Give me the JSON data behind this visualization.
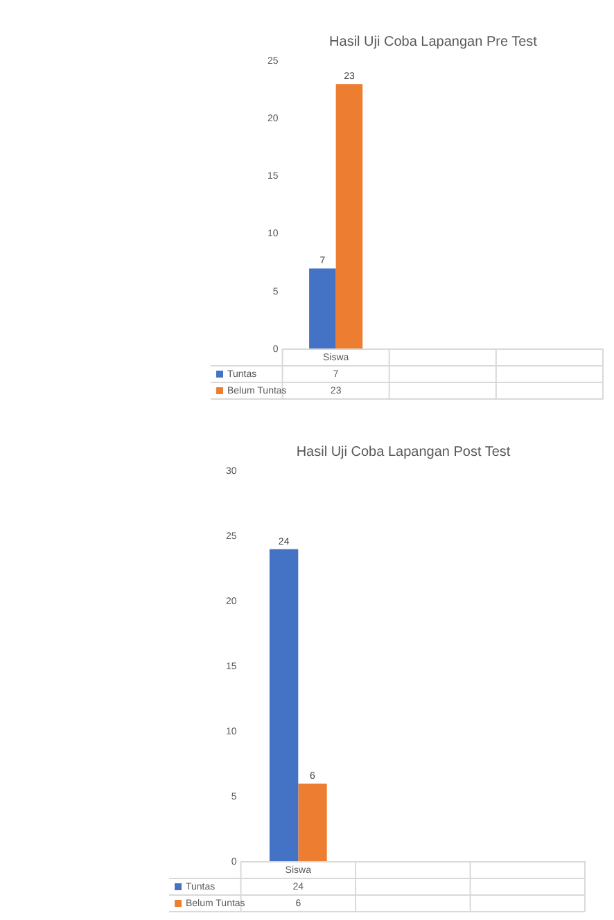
{
  "chart_data": [
    {
      "type": "bar",
      "title": "Hasil Uji Coba Lapangan Pre Test",
      "categories": [
        "Siswa",
        null,
        null
      ],
      "series": [
        {
          "name": "Tuntas",
          "color": "#4472c4",
          "values": [
            7,
            null,
            null
          ]
        },
        {
          "name": "Belum Tuntas",
          "color": "#ed7d31",
          "values": [
            23,
            null,
            null
          ]
        }
      ],
      "ylim": [
        0,
        25
      ],
      "yticks": [
        0,
        5,
        10,
        15,
        20,
        25
      ],
      "grid": false,
      "legend": "bottom",
      "data_labels": true,
      "annotations": [
        "7",
        "23"
      ]
    },
    {
      "type": "bar",
      "title": "Hasil Uji Coba Lapangan Post Test",
      "categories": [
        "Siswa",
        null,
        null
      ],
      "series": [
        {
          "name": "Tuntas",
          "color": "#4472c4",
          "values": [
            24,
            null,
            null
          ]
        },
        {
          "name": "Belum Tuntas",
          "color": "#ed7d31",
          "values": [
            6,
            null,
            null
          ]
        }
      ],
      "ylim": [
        0,
        30
      ],
      "yticks": [
        0,
        5,
        10,
        15,
        20,
        25,
        30
      ],
      "grid": false,
      "legend": "bottom",
      "data_labels": true,
      "annotations": [
        "24",
        "6"
      ]
    }
  ]
}
